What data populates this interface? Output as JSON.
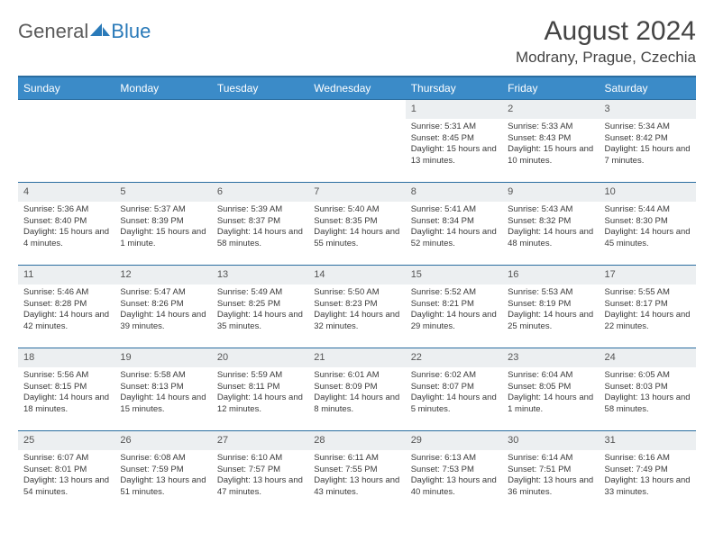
{
  "brand": {
    "part1": "General",
    "part2": "Blue"
  },
  "title": "August 2024",
  "location": "Modrany, Prague, Czechia",
  "colors": {
    "header_bg": "#3b8bc8",
    "header_border": "#2a6da0",
    "daynum_bg": "#eceff1",
    "text": "#3a3a3a",
    "logo_blue": "#2a7ab9"
  },
  "weekdays": [
    "Sunday",
    "Monday",
    "Tuesday",
    "Wednesday",
    "Thursday",
    "Friday",
    "Saturday"
  ],
  "weeks": [
    [
      null,
      null,
      null,
      null,
      {
        "n": "1",
        "sr": "5:31 AM",
        "ss": "8:45 PM",
        "dl": "15 hours and 13 minutes."
      },
      {
        "n": "2",
        "sr": "5:33 AM",
        "ss": "8:43 PM",
        "dl": "15 hours and 10 minutes."
      },
      {
        "n": "3",
        "sr": "5:34 AM",
        "ss": "8:42 PM",
        "dl": "15 hours and 7 minutes."
      }
    ],
    [
      {
        "n": "4",
        "sr": "5:36 AM",
        "ss": "8:40 PM",
        "dl": "15 hours and 4 minutes."
      },
      {
        "n": "5",
        "sr": "5:37 AM",
        "ss": "8:39 PM",
        "dl": "15 hours and 1 minute."
      },
      {
        "n": "6",
        "sr": "5:39 AM",
        "ss": "8:37 PM",
        "dl": "14 hours and 58 minutes."
      },
      {
        "n": "7",
        "sr": "5:40 AM",
        "ss": "8:35 PM",
        "dl": "14 hours and 55 minutes."
      },
      {
        "n": "8",
        "sr": "5:41 AM",
        "ss": "8:34 PM",
        "dl": "14 hours and 52 minutes."
      },
      {
        "n": "9",
        "sr": "5:43 AM",
        "ss": "8:32 PM",
        "dl": "14 hours and 48 minutes."
      },
      {
        "n": "10",
        "sr": "5:44 AM",
        "ss": "8:30 PM",
        "dl": "14 hours and 45 minutes."
      }
    ],
    [
      {
        "n": "11",
        "sr": "5:46 AM",
        "ss": "8:28 PM",
        "dl": "14 hours and 42 minutes."
      },
      {
        "n": "12",
        "sr": "5:47 AM",
        "ss": "8:26 PM",
        "dl": "14 hours and 39 minutes."
      },
      {
        "n": "13",
        "sr": "5:49 AM",
        "ss": "8:25 PM",
        "dl": "14 hours and 35 minutes."
      },
      {
        "n": "14",
        "sr": "5:50 AM",
        "ss": "8:23 PM",
        "dl": "14 hours and 32 minutes."
      },
      {
        "n": "15",
        "sr": "5:52 AM",
        "ss": "8:21 PM",
        "dl": "14 hours and 29 minutes."
      },
      {
        "n": "16",
        "sr": "5:53 AM",
        "ss": "8:19 PM",
        "dl": "14 hours and 25 minutes."
      },
      {
        "n": "17",
        "sr": "5:55 AM",
        "ss": "8:17 PM",
        "dl": "14 hours and 22 minutes."
      }
    ],
    [
      {
        "n": "18",
        "sr": "5:56 AM",
        "ss": "8:15 PM",
        "dl": "14 hours and 18 minutes."
      },
      {
        "n": "19",
        "sr": "5:58 AM",
        "ss": "8:13 PM",
        "dl": "14 hours and 15 minutes."
      },
      {
        "n": "20",
        "sr": "5:59 AM",
        "ss": "8:11 PM",
        "dl": "14 hours and 12 minutes."
      },
      {
        "n": "21",
        "sr": "6:01 AM",
        "ss": "8:09 PM",
        "dl": "14 hours and 8 minutes."
      },
      {
        "n": "22",
        "sr": "6:02 AM",
        "ss": "8:07 PM",
        "dl": "14 hours and 5 minutes."
      },
      {
        "n": "23",
        "sr": "6:04 AM",
        "ss": "8:05 PM",
        "dl": "14 hours and 1 minute."
      },
      {
        "n": "24",
        "sr": "6:05 AM",
        "ss": "8:03 PM",
        "dl": "13 hours and 58 minutes."
      }
    ],
    [
      {
        "n": "25",
        "sr": "6:07 AM",
        "ss": "8:01 PM",
        "dl": "13 hours and 54 minutes."
      },
      {
        "n": "26",
        "sr": "6:08 AM",
        "ss": "7:59 PM",
        "dl": "13 hours and 51 minutes."
      },
      {
        "n": "27",
        "sr": "6:10 AM",
        "ss": "7:57 PM",
        "dl": "13 hours and 47 minutes."
      },
      {
        "n": "28",
        "sr": "6:11 AM",
        "ss": "7:55 PM",
        "dl": "13 hours and 43 minutes."
      },
      {
        "n": "29",
        "sr": "6:13 AM",
        "ss": "7:53 PM",
        "dl": "13 hours and 40 minutes."
      },
      {
        "n": "30",
        "sr": "6:14 AM",
        "ss": "7:51 PM",
        "dl": "13 hours and 36 minutes."
      },
      {
        "n": "31",
        "sr": "6:16 AM",
        "ss": "7:49 PM",
        "dl": "13 hours and 33 minutes."
      }
    ]
  ],
  "labels": {
    "sunrise": "Sunrise:",
    "sunset": "Sunset:",
    "daylight": "Daylight:"
  }
}
